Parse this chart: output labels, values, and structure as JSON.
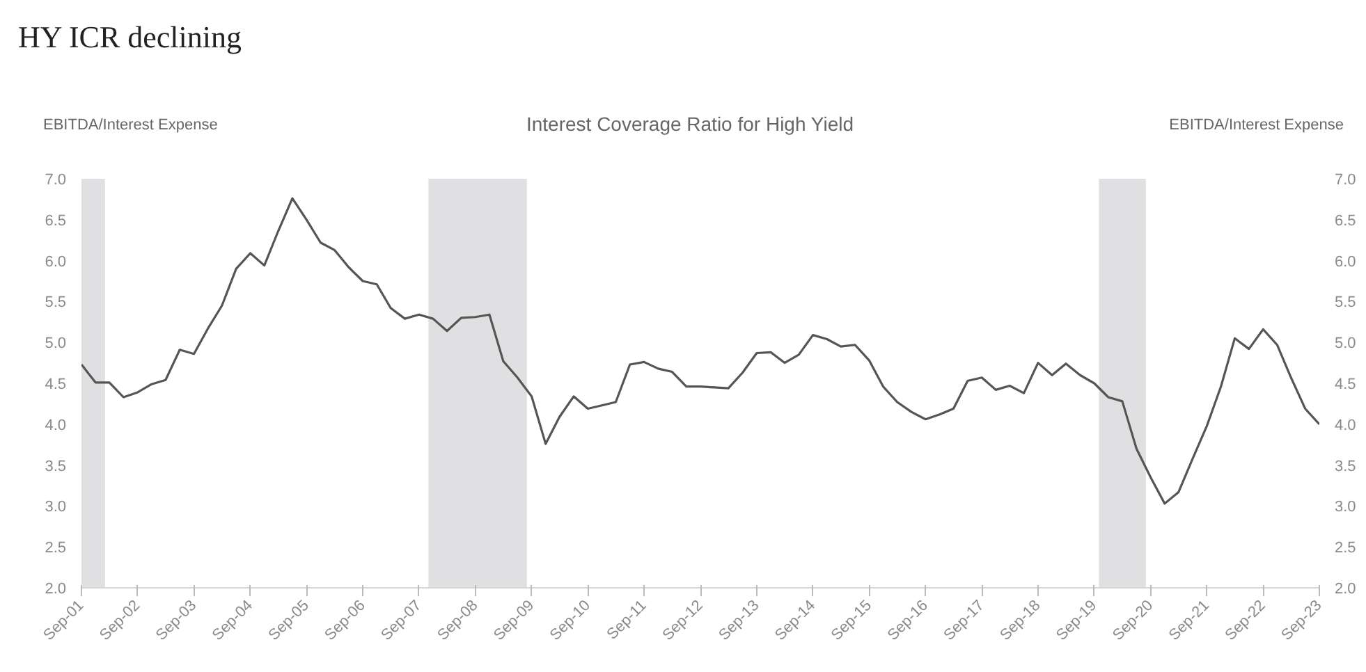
{
  "chart_data": {
    "type": "line",
    "title": "HY ICR declining",
    "subtitle": "Interest Coverage Ratio for High Yield",
    "ylabel": "EBITDA/Interest Expense",
    "y2label": "EBITDA/Interest Expense",
    "x": [
      "2001-09",
      "2001-12",
      "2002-03",
      "2002-06",
      "2002-09",
      "2002-12",
      "2003-03",
      "2003-06",
      "2003-09",
      "2003-12",
      "2004-03",
      "2004-06",
      "2004-09",
      "2004-12",
      "2005-03",
      "2005-06",
      "2005-09",
      "2005-12",
      "2006-03",
      "2006-06",
      "2006-09",
      "2006-12",
      "2007-03",
      "2007-06",
      "2007-09",
      "2007-12",
      "2008-03",
      "2008-06",
      "2008-09",
      "2008-12",
      "2009-03",
      "2009-06",
      "2009-09",
      "2009-12",
      "2010-03",
      "2010-06",
      "2010-09",
      "2010-12",
      "2011-03",
      "2011-06",
      "2011-09",
      "2011-12",
      "2012-03",
      "2012-06",
      "2012-09",
      "2012-12",
      "2013-03",
      "2013-06",
      "2013-09",
      "2013-12",
      "2014-03",
      "2014-06",
      "2014-09",
      "2014-12",
      "2015-03",
      "2015-06",
      "2015-09",
      "2015-12",
      "2016-03",
      "2016-06",
      "2016-09",
      "2016-12",
      "2017-03",
      "2017-06",
      "2017-09",
      "2017-12",
      "2018-03",
      "2018-06",
      "2018-09",
      "2018-12",
      "2019-03",
      "2019-06",
      "2019-09",
      "2019-12",
      "2020-03",
      "2020-06",
      "2020-09",
      "2020-12",
      "2021-03",
      "2021-06",
      "2021-09",
      "2021-12",
      "2022-03",
      "2022-06",
      "2022-09",
      "2022-12",
      "2023-03",
      "2023-06",
      "2023-09"
    ],
    "series": [
      {
        "color": "#555555",
        "values": [
          4.73,
          4.51,
          4.51,
          4.33,
          4.39,
          4.49,
          4.54,
          4.91,
          4.86,
          5.17,
          5.45,
          5.9,
          6.09,
          5.94,
          6.36,
          6.76,
          6.5,
          6.22,
          6.13,
          5.92,
          5.75,
          5.71,
          5.42,
          5.29,
          5.34,
          5.29,
          5.14,
          5.3,
          5.31,
          5.34,
          4.77,
          4.57,
          4.34,
          3.76,
          4.09,
          4.34,
          4.19,
          4.23,
          4.27,
          4.73,
          4.76,
          4.68,
          4.64,
          4.46,
          4.46,
          4.45,
          4.44,
          4.63,
          4.87,
          4.88,
          4.75,
          4.85,
          5.09,
          5.04,
          4.95,
          4.97,
          4.78,
          4.46,
          4.27,
          4.15,
          4.06,
          4.12,
          4.19,
          4.53,
          4.57,
          4.42,
          4.47,
          4.38,
          4.75,
          4.6,
          4.74,
          4.6,
          4.5,
          4.33,
          4.28,
          3.7,
          3.35,
          3.03,
          3.17,
          3.58,
          3.98,
          4.46,
          5.05,
          4.92,
          5.16,
          4.97,
          4.57,
          4.19,
          4.0
        ]
      }
    ],
    "xlim": [
      "2001-09",
      "2023-09"
    ],
    "xticks": [
      {
        "value": "2001-09",
        "label": "Sep-01"
      },
      {
        "value": "2002-09",
        "label": "Sep-02"
      },
      {
        "value": "2003-09",
        "label": "Sep-03"
      },
      {
        "value": "2004-09",
        "label": "Sep-04"
      },
      {
        "value": "2005-09",
        "label": "Sep-05"
      },
      {
        "value": "2006-09",
        "label": "Sep-06"
      },
      {
        "value": "2007-09",
        "label": "Sep-07"
      },
      {
        "value": "2008-09",
        "label": "Sep-08"
      },
      {
        "value": "2009-09",
        "label": "Sep-09"
      },
      {
        "value": "2010-09",
        "label": "Sep-10"
      },
      {
        "value": "2011-09",
        "label": "Sep-11"
      },
      {
        "value": "2012-09",
        "label": "Sep-12"
      },
      {
        "value": "2013-09",
        "label": "Sep-13"
      },
      {
        "value": "2014-09",
        "label": "Sep-14"
      },
      {
        "value": "2015-09",
        "label": "Sep-15"
      },
      {
        "value": "2016-09",
        "label": "Sep-16"
      },
      {
        "value": "2017-09",
        "label": "Sep-17"
      },
      {
        "value": "2018-09",
        "label": "Sep-18"
      },
      {
        "value": "2019-09",
        "label": "Sep-19"
      },
      {
        "value": "2020-09",
        "label": "Sep-20"
      },
      {
        "value": "2021-09",
        "label": "Sep-21"
      },
      {
        "value": "2022-09",
        "label": "Sep-22"
      },
      {
        "value": "2023-09",
        "label": "Sep-23"
      }
    ],
    "ylim": [
      2.0,
      7.0
    ],
    "yticks": [
      {
        "value": 2,
        "label": "2.0"
      },
      2.5,
      {
        "value": 3,
        "label": "3.0"
      },
      3.5,
      {
        "value": 4,
        "label": "4.0"
      },
      4.5,
      {
        "value": 5,
        "label": "5.0"
      },
      5.5,
      {
        "value": 6,
        "label": "6.0"
      },
      6.5,
      {
        "value": 7,
        "label": "7.0"
      }
    ],
    "y2lim": [
      2.0,
      7.0
    ],
    "y2ticks": [
      {
        "value": 2,
        "label": "2.0"
      },
      2.5,
      {
        "value": 3,
        "label": "3.0"
      },
      3.5,
      {
        "value": 4,
        "label": "4.0"
      },
      4.5,
      {
        "value": 5,
        "label": "5.0"
      },
      5.5,
      {
        "value": 6,
        "label": "6.0"
      },
      6.5,
      {
        "value": 7,
        "label": "7.0"
      }
    ],
    "bands": [
      {
        "axis": "x",
        "from": "2001-09",
        "to": "2002-02",
        "color": "#e0e0e2"
      },
      {
        "axis": "x",
        "from": "2007-11",
        "to": "2009-08",
        "color": "#e0e0e2"
      },
      {
        "axis": "x",
        "from": "2019-10",
        "to": "2020-08",
        "color": "#e0e0e2"
      }
    ],
    "grid": false,
    "marker": "none",
    "line_style": "solid"
  }
}
